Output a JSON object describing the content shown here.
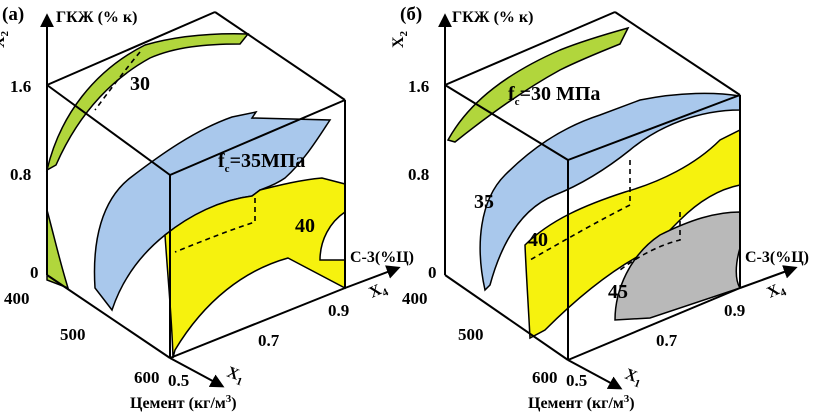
{
  "panels": [
    {
      "id": "a",
      "label": "(а)",
      "x2": {
        "var": "X",
        "sub": "2",
        "name": "ГКЖ (% к)",
        "ticks": [
          "1.6",
          "0.8",
          "0"
        ]
      },
      "x4": {
        "var": "X",
        "sub": "4",
        "name": "С-3(%Ц)",
        "ticks": [
          "0.5",
          "0.7",
          "0.9"
        ]
      },
      "x1": {
        "var": "X",
        "sub": "1",
        "name": "Цемент (кг/м",
        "name_sup": "3",
        "name_end": ")",
        "ticks": [
          "400",
          "500",
          "600"
        ]
      },
      "contours": {
        "c1": "30",
        "fc_prefix": "f",
        "fc_sub": "c",
        "fc_value": "=35МПа",
        "c3": "40"
      },
      "surface_colors": {
        "green": "#b1d63c",
        "blue": "#a9c8ec",
        "yellow": "#f6f20e"
      }
    },
    {
      "id": "b",
      "label": "(б)",
      "x2": {
        "var": "X",
        "sub": "2",
        "name": "ГКЖ (% к)",
        "ticks": [
          "1.6",
          "0.8",
          "0"
        ]
      },
      "x4": {
        "var": "X",
        "sub": "4",
        "name": "С-3(%Ц)",
        "ticks": [
          "0.5",
          "0.7",
          "0.9"
        ]
      },
      "x1": {
        "var": "X",
        "sub": "1",
        "name": "Цемент (кг/м",
        "name_sup": "3",
        "name_end": ")",
        "ticks": [
          "400",
          "500",
          "600"
        ]
      },
      "contours": {
        "fc_prefix": "f",
        "fc_sub": "c",
        "fc_value": "=30 МПа",
        "c2": "35",
        "c3": "40",
        "c4": "45"
      },
      "surface_colors": {
        "green": "#b1d63c",
        "blue": "#a9c8ec",
        "yellow": "#f6f20e",
        "gray": "#b9b9b9"
      }
    }
  ]
}
